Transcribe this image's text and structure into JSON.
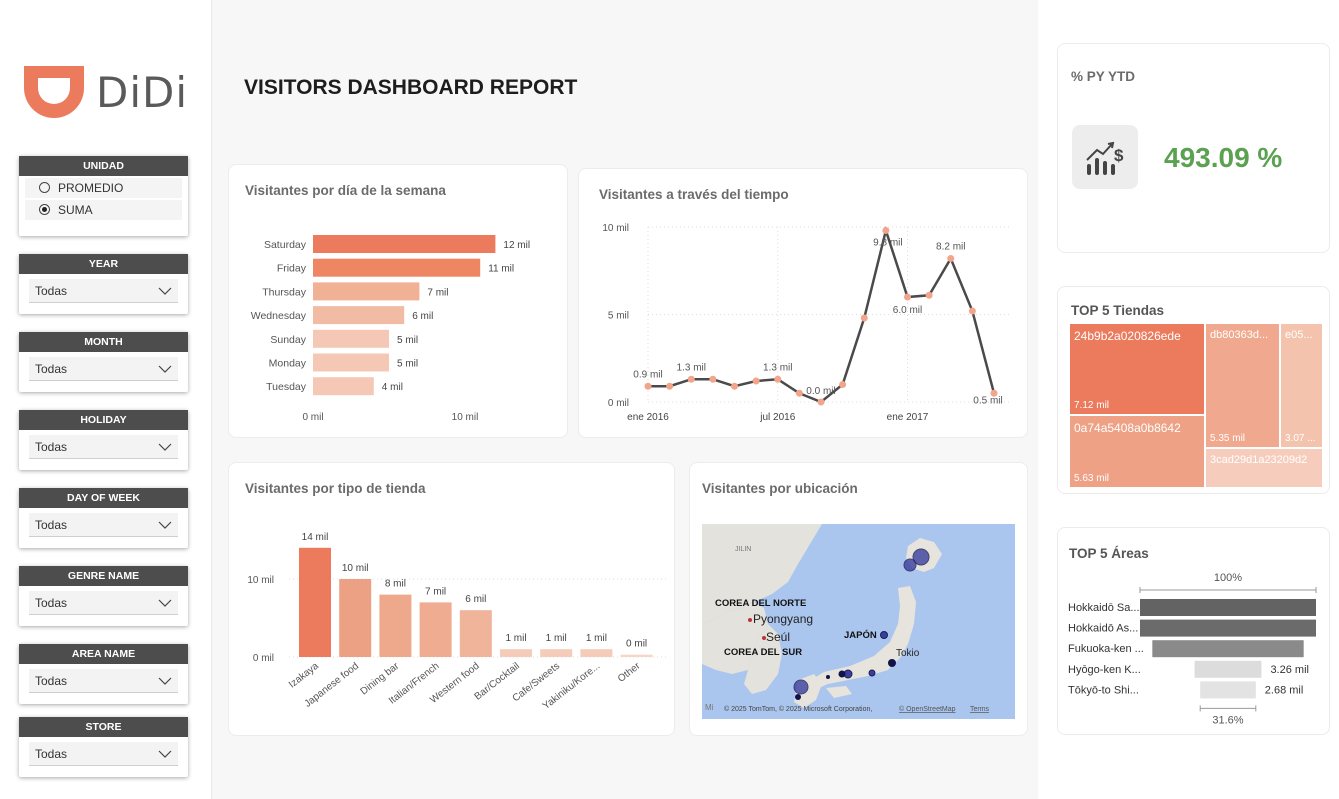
{
  "title": "VISITORS DASHBOARD REPORT",
  "logo": {
    "text": "DiDi"
  },
  "slicers": {
    "unidad": {
      "label": "UNIDAD",
      "options": [
        "PROMEDIO",
        "SUMA"
      ],
      "selected": "SUMA"
    },
    "year": {
      "label": "YEAR",
      "value": "Todas"
    },
    "month": {
      "label": "MONTH",
      "value": "Todas"
    },
    "holiday": {
      "label": "HOLIDAY",
      "value": "Todas"
    },
    "day_of_week": {
      "label": "DAY OF WEEK",
      "value": "Todas"
    },
    "genre_name": {
      "label": "GENRE NAME",
      "value": "Todas"
    },
    "area_name": {
      "label": "AREA NAME",
      "value": "Todas"
    },
    "store": {
      "label": "STORE",
      "value": "Todas"
    }
  },
  "kpi": {
    "title": "% PY YTD",
    "value": "493.09 %",
    "icon": "chart-dollar-icon"
  },
  "weekday_card": {
    "title": "Visitantes por día de la semana"
  },
  "time_card": {
    "title": "Visitantes a través del tiempo"
  },
  "genre_card": {
    "title": "Visitantes por tipo de tienda"
  },
  "map_card": {
    "title": "Visitantes por ubicación",
    "labels": {
      "china": "JILIN",
      "nk": "COREA DEL NORTE",
      "pyongyang": "Pyongyang",
      "seoul": "Seúl",
      "sk": "COREA DEL SUR",
      "japan": "JAPÓN",
      "tokyo": "Tokio",
      "attribution": "© 2025 TomTom, © 2025 Microsoft Corporation,",
      "osm": "© OpenStreetMap",
      "terms": "Terms",
      "logo_text": "Mi"
    }
  },
  "top_stores": {
    "title": "TOP 5 Tiendas",
    "items": [
      {
        "name": "24b9b2a020826ede",
        "value": "7.12 mil"
      },
      {
        "name": "0a74a5408a0b8642",
        "value": "5.63 mil"
      },
      {
        "name": "db80363d...",
        "value": "5.35 mil"
      },
      {
        "name": "e05...",
        "value": "3.07 ..."
      },
      {
        "name": "3cad29d1a23209d2",
        "value": ""
      }
    ]
  },
  "top_areas": {
    "title": "TOP 5 Áreas",
    "top_pct": "100%",
    "bottom_pct": "31.6%",
    "items": [
      {
        "name": "Hokkaidō Sa...",
        "label": ""
      },
      {
        "name": "Hokkaidō As...",
        "label": ""
      },
      {
        "name": "Fukuoka-ken ...",
        "label": ""
      },
      {
        "name": "Hyōgo-ken K...",
        "label": "3.26 mil"
      },
      {
        "name": "Tōkyō-to Shi...",
        "label": "2.68 mil"
      }
    ]
  },
  "chart_data": [
    {
      "type": "bar",
      "orientation": "horizontal",
      "categories": [
        "Saturday",
        "Friday",
        "Thursday",
        "Wednesday",
        "Sunday",
        "Monday",
        "Tuesday"
      ],
      "values": [
        12,
        11,
        7,
        6,
        5,
        5,
        4
      ],
      "data_labels": [
        "12 mil",
        "11 mil",
        "7 mil",
        "6 mil",
        "5 mil",
        "5 mil",
        "4 mil"
      ],
      "xticks": [
        "0 mil",
        "10 mil"
      ],
      "xlim": [
        0,
        13
      ],
      "colors": [
        "#ec7b5d",
        "#ee8664",
        "#f0b194",
        "#f2bca4",
        "#f4c8b4",
        "#f4c8b4",
        "#f4c8b4"
      ]
    },
    {
      "type": "line",
      "x": [
        "2016-01",
        "2016-02",
        "2016-03",
        "2016-04",
        "2016-05",
        "2016-06",
        "2016-07",
        "2016-08",
        "2016-09",
        "2016-10",
        "2016-11",
        "2016-12",
        "2017-01",
        "2017-02",
        "2017-03",
        "2017-04",
        "2017-05"
      ],
      "values": [
        0.9,
        0.9,
        1.3,
        1.3,
        0.9,
        1.2,
        1.3,
        0.5,
        0.0,
        1.0,
        4.8,
        9.8,
        6.0,
        6.1,
        8.2,
        5.2,
        0.5
      ],
      "point_labels": [
        "0.9 mil",
        "",
        "1.3 mil",
        "",
        "",
        "",
        "1.3 mil",
        "",
        "0.0 mil",
        "",
        "",
        "9.8 mil",
        "6.0 mil",
        "",
        "8.2 mil",
        "",
        "0.5 mil"
      ],
      "xticks": [
        "ene 2016",
        "jul 2016",
        "ene 2017"
      ],
      "yticks": [
        "0 mil",
        "5 mil",
        "10 mil"
      ],
      "ylim": [
        0,
        10
      ],
      "line_color": "#4a4a4a",
      "marker_color": "#f2a58a"
    },
    {
      "type": "bar",
      "orientation": "vertical",
      "categories": [
        "Izakaya",
        "Japanese food",
        "Dining bar",
        "Italian/French",
        "Western food",
        "Bar/Cocktail",
        "Cafe/Sweets",
        "Yakiniku/Kore...",
        "Other"
      ],
      "values": [
        14,
        10,
        8,
        7,
        6,
        1,
        1,
        1,
        0.3
      ],
      "data_labels": [
        "14 mil",
        "10 mil",
        "8 mil",
        "7 mil",
        "6 mil",
        "1 mil",
        "1 mil",
        "1 mil",
        "0 mil"
      ],
      "yticks": [
        "0 mil",
        "10 mil"
      ],
      "ylim": [
        0,
        15
      ],
      "colors": [
        "#ec7b5d",
        "#eda184",
        "#eea98d",
        "#efac90",
        "#f0b49a",
        "#f5cbb9",
        "#f5cbb9",
        "#f5cbb9",
        "#f7d6c8"
      ]
    },
    {
      "type": "bar",
      "orientation": "horizontal",
      "name": "TOP 5 Áreas funnel",
      "categories": [
        "Hokkaidō Sa...",
        "Hokkaidō As...",
        "Fukuoka-ken ...",
        "Hyōgo-ken K...",
        "Tōkyō-to Shi..."
      ],
      "values": [
        100,
        100,
        86,
        38,
        31.6
      ],
      "colors": [
        "#636363",
        "#6b6b6b",
        "#8a8a8a",
        "#dcdcdc",
        "#e3e3e3"
      ]
    }
  ]
}
